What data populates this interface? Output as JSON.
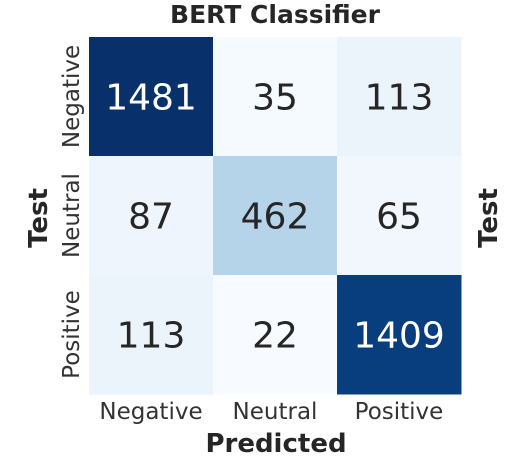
{
  "chart_data": {
    "type": "heatmap",
    "title": "BERT Classifier",
    "xlabel": "Predicted",
    "ylabel": "Test",
    "ylabel_right": "Test",
    "x_categories": [
      "Negative",
      "Neutral",
      "Positive"
    ],
    "y_categories": [
      "Negative",
      "Neutral",
      "Positive"
    ],
    "matrix": [
      [
        1481,
        35,
        113
      ],
      [
        87,
        462,
        65
      ],
      [
        113,
        22,
        1409
      ]
    ],
    "colormap": "Blues",
    "colorbar": false,
    "colors": {
      "low": "#f7fbff",
      "mid": "#6baed6",
      "high": "#08306b",
      "text_dark": "#262626",
      "text_light": "#ffffff"
    }
  }
}
